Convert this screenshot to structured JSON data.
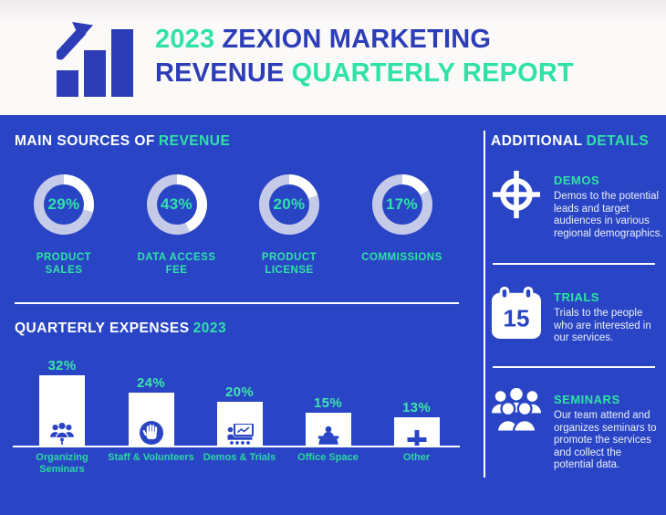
{
  "header": {
    "logo_icon": "bar-chart-arrow-icon",
    "title_line1": {
      "accent": "2023",
      "rest": "ZEXION MARKETING"
    },
    "title_line2": {
      "rest": "REVENUE",
      "accent": "QUARTERLY REPORT"
    }
  },
  "revenue_section": {
    "heading": {
      "white": "MAIN SOURCES OF",
      "accent": "REVENUE"
    },
    "donuts": [
      {
        "pct_label": "29%",
        "label": "PRODUCT\nSALES"
      },
      {
        "pct_label": "43%",
        "label": "DATA ACCESS\nFEE"
      },
      {
        "pct_label": "20%",
        "label": "PRODUCT\nLICENSE"
      },
      {
        "pct_label": "17%",
        "label": "COMMISSIONS"
      }
    ]
  },
  "expenses_section": {
    "heading": {
      "white": "QUARTERLY EXPENSES",
      "accent": "2023"
    },
    "bars": [
      {
        "pct_label": "32%",
        "label": "Organizing\nSeminars",
        "icon": "seminar-audience-icon"
      },
      {
        "pct_label": "24%",
        "label": "Staff & Volunteers",
        "icon": "hand-icon"
      },
      {
        "pct_label": "20%",
        "label": "Demos & Trials",
        "icon": "presentation-cart-icon"
      },
      {
        "pct_label": "15%",
        "label": "Office Space",
        "icon": "desk-person-icon"
      },
      {
        "pct_label": "13%",
        "label": "Other",
        "icon": "plus-icon"
      }
    ]
  },
  "sidebar": {
    "heading": {
      "white": "ADDITIONAL",
      "accent": "DETAILS"
    },
    "items": [
      {
        "icon": "target-icon",
        "title": "DEMOS",
        "desc": "Demos to the potential\nleads and target\naudiences in various\nregional demographics."
      },
      {
        "icon": "calendar-icon",
        "calendar_day": "15",
        "title": "TRIALS",
        "desc": "Trials to the people\nwho are interested in\nour services."
      },
      {
        "icon": "people-group-icon",
        "title": "SEMINARS",
        "desc": "Our team attend and\norganizes seminars to\npromote the services\nand collect the\npotential data."
      }
    ]
  },
  "colors": {
    "panel_blue": "#2945C5",
    "title_blue": "#2C3DB7",
    "accent_green": "#2FE3A5",
    "donut_remainder": "#C5CAE8",
    "donut_filled": "#FFFFFF",
    "bar_white": "#FFFFFF"
  },
  "chart_data": [
    {
      "type": "pie",
      "variant": "donut",
      "title": "MAIN SOURCES OF REVENUE",
      "labels": [
        "PRODUCT SALES",
        "DATA ACCESS FEE",
        "PRODUCT LICENSE",
        "COMMISSIONS"
      ],
      "values": [
        29,
        43,
        20,
        17
      ],
      "unit": "%",
      "start_angle": "top",
      "direction": "clockwise",
      "filled_color": "#FFFFFF",
      "remainder_color": "#C5CAE8"
    },
    {
      "type": "bar",
      "title": "QUARTERLY EXPENSES 2023",
      "categories": [
        "Organizing Seminars",
        "Staff & Volunteers",
        "Demos & Trials",
        "Office Space",
        "Other"
      ],
      "values": [
        32,
        24,
        20,
        15,
        13
      ],
      "unit": "%",
      "value_labels": [
        "32%",
        "24%",
        "20%",
        "15%",
        "13%"
      ],
      "bar_color": "#FFFFFF",
      "ylim": [
        0,
        35
      ],
      "grid": false,
      "legend": false
    }
  ]
}
